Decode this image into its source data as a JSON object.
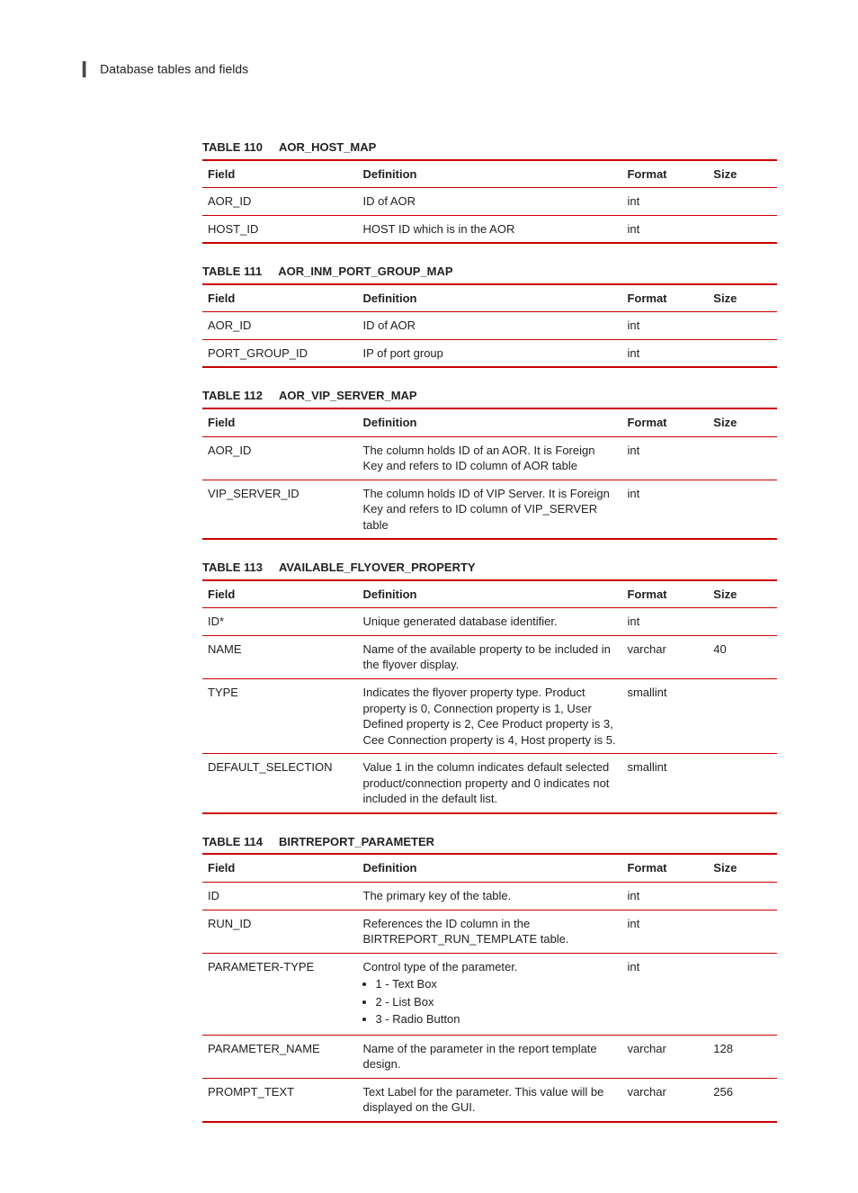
{
  "header": {
    "chapter_mark": "I",
    "title": "Database tables and fields"
  },
  "column_headers": {
    "field": "Field",
    "definition": "Definition",
    "format": "Format",
    "size": "Size"
  },
  "tables": [
    {
      "label": "TABLE 110",
      "name": "AOR_HOST_MAP",
      "rows": [
        {
          "field": "AOR_ID",
          "definition": "ID of AOR",
          "format": "int",
          "size": ""
        },
        {
          "field": "HOST_ID",
          "definition": "HOST ID which is in the AOR",
          "format": "int",
          "size": ""
        }
      ]
    },
    {
      "label": "TABLE 111",
      "name": "AOR_INM_PORT_GROUP_MAP",
      "rows": [
        {
          "field": "AOR_ID",
          "definition": "ID of AOR",
          "format": "int",
          "size": ""
        },
        {
          "field": "PORT_GROUP_ID",
          "definition": "IP of port group",
          "format": "int",
          "size": ""
        }
      ]
    },
    {
      "label": "TABLE 112",
      "name": "AOR_VIP_SERVER_MAP",
      "rows": [
        {
          "field": "AOR_ID",
          "definition": "The column holds ID of an AOR. It is Foreign Key and refers to ID column of AOR table",
          "format": "int",
          "size": ""
        },
        {
          "field": "VIP_SERVER_ID",
          "definition": "The column holds ID of VIP Server. It is Foreign Key and refers to ID column of VIP_SERVER table",
          "format": "int",
          "size": ""
        }
      ]
    },
    {
      "label": "TABLE 113",
      "name": "AVAILABLE_FLYOVER_PROPERTY",
      "rows": [
        {
          "field": "ID*",
          "definition": "Unique generated database identifier.",
          "format": "int",
          "size": ""
        },
        {
          "field": "NAME",
          "definition": "Name of the available property to be included in the flyover display.",
          "format": "varchar",
          "size": "40"
        },
        {
          "field": "TYPE",
          "definition": "Indicates the flyover property type. Product property is 0, Connection property is 1, User Defined property is 2, Cee Product property is 3, Cee Connection property is 4, Host property is 5.",
          "format": "smallint",
          "size": ""
        },
        {
          "field": "DEFAULT_SELECTION",
          "definition": "Value 1 in the column indicates default selected product/connection property and 0 indicates not included in the default list.",
          "format": "smallint",
          "size": ""
        }
      ]
    },
    {
      "label": "TABLE 114",
      "name": "BIRTREPORT_PARAMETER",
      "rows": [
        {
          "field": "ID",
          "definition": "The primary key of the table.",
          "format": "int",
          "size": ""
        },
        {
          "field": "RUN_ID",
          "definition": "References the ID column in the BIRTREPORT_RUN_TEMPLATE table.",
          "format": "int",
          "size": ""
        },
        {
          "field": "PARAMETER-TYPE",
          "definition": "Control type of the parameter.",
          "format": "int",
          "size": "",
          "bullets": [
            "1 - Text Box",
            "2 - List Box",
            "3 - Radio Button"
          ]
        },
        {
          "field": "PARAMETER_NAME",
          "definition": "Name of the parameter in the report template design.",
          "format": "varchar",
          "size": "128"
        },
        {
          "field": "PROMPT_TEXT",
          "definition": "Text Label for the parameter. This value will be displayed on the GUI.",
          "format": "varchar",
          "size": "256"
        }
      ]
    }
  ]
}
